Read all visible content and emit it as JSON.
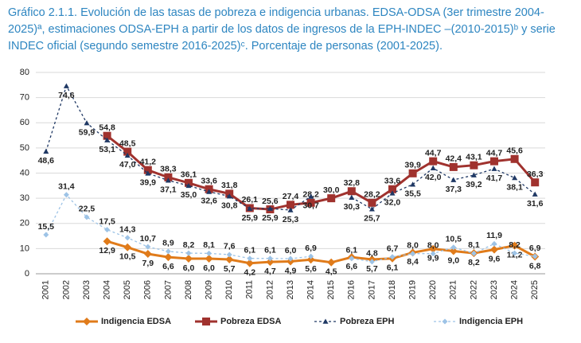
{
  "chart_data": {
    "type": "line",
    "title": "Gráfico 2.1.1. Evolución de las tasas de pobreza e indigencia urbanas. EDSA-ODSA (3er trimestre 2004-2025)ª, estimaciones ODSA-EPH a partir de los datos de ingresos de la EPH-INDEC –(2010-2015)ᵇ y serie INDEC oficial (segundo semestre 2016-2025)ᶜ. Porcentaje de personas (2001-2025).",
    "categories": [
      "2001",
      "2002",
      "2003",
      "2004",
      "2005",
      "2006",
      "2007",
      "2008",
      "2009",
      "2010",
      "2011",
      "2012",
      "2013",
      "2014",
      "2015",
      "2016",
      "2017",
      "2018",
      "2019",
      "2020",
      "2021",
      "2022",
      "2023",
      "2024",
      "2025"
    ],
    "ylim": [
      0,
      80
    ],
    "yticks": [
      0,
      10,
      20,
      30,
      40,
      50,
      60,
      70,
      80
    ],
    "grid": true,
    "legend": "bottom",
    "series": [
      {
        "name": "Indigencia EDSA",
        "color": "#e07b1a",
        "marker": "diamond",
        "dashed": false,
        "values": [
          null,
          null,
          null,
          12.9,
          10.5,
          7.9,
          6.6,
          6.0,
          6.0,
          5.7,
          4.2,
          4.7,
          4.9,
          5.6,
          4.5,
          6.6,
          5.7,
          6.1,
          8.4,
          9.9,
          9.0,
          8.2,
          9.6,
          11.2,
          6.8
        ],
        "value_labels": [
          null,
          null,
          null,
          "12,9",
          "10,5",
          "7,9",
          "6,6",
          "6,0",
          "6,0",
          "5,7",
          "4,2",
          "4,7",
          "4,9",
          "5,6",
          "4,5",
          "6,6",
          "5,7",
          "6,1",
          "8,4",
          "9,9",
          "9,0",
          "8,2",
          "9,6",
          "11,2",
          "6,8"
        ]
      },
      {
        "name": "Pobreza EDSA",
        "color": "#a0322e",
        "marker": "square",
        "dashed": false,
        "values": [
          null,
          null,
          null,
          54.8,
          48.5,
          41.2,
          38.3,
          36.1,
          33.6,
          31.8,
          26.1,
          25.6,
          27.4,
          28.2,
          30.0,
          32.8,
          28.2,
          33.6,
          39.9,
          44.7,
          42.4,
          43.1,
          44.7,
          45.6,
          36.3
        ],
        "value_labels": [
          null,
          null,
          null,
          "54,8",
          "48,5",
          "41,2",
          "38,3",
          "36,1",
          "33,6",
          "31,8",
          "26,1",
          "25,6",
          "27,4",
          "28,2",
          "30,0",
          "32,8",
          "28,2",
          "33,6",
          "39,9",
          "44,7",
          "42,4",
          "43,1",
          "44,7",
          "45,6",
          "36,3"
        ]
      },
      {
        "name": "Pobreza EPH",
        "color": "#1f3864",
        "marker": "triangle",
        "dashed": true,
        "values": [
          48.6,
          74.6,
          59.9,
          53.1,
          47.0,
          39.9,
          37.1,
          35.0,
          32.6,
          30.8,
          25.9,
          25.9,
          25.3,
          30.7,
          null,
          30.3,
          25.7,
          32.0,
          35.5,
          42.0,
          37.3,
          39.2,
          41.7,
          38.1,
          31.6
        ],
        "value_labels": [
          "48,6",
          "74,6",
          "59,9",
          "53,1",
          "47,0",
          "39,9",
          "37,1",
          "35,0",
          "32,6",
          "30,8",
          "25,9",
          "25,9",
          "25,3",
          "30,7",
          null,
          "30,3",
          "25,7",
          "32,0",
          "35,5",
          "42,0",
          "37,3",
          "39,2",
          "41,7",
          "38,1",
          "31,6"
        ]
      },
      {
        "name": "Indigencia EPH",
        "color": "#9dc3e6",
        "marker": "diamond",
        "dashed": true,
        "values": [
          15.5,
          31.4,
          22.5,
          17.5,
          14.3,
          10.7,
          8.9,
          8.2,
          8.1,
          7.6,
          6.1,
          6.1,
          6.0,
          6.9,
          null,
          6.1,
          4.8,
          6.7,
          8.0,
          8.0,
          10.5,
          8.1,
          11.9,
          8.2,
          6.9
        ],
        "value_labels": [
          "15,5",
          "31,4",
          "22,5",
          "17,5",
          "14,3",
          "10,7",
          "8,9",
          "8,2",
          "8,1",
          "7,6",
          "6,1",
          "6,1",
          "6,0",
          "6,9",
          null,
          "6,1",
          "4,8",
          "6,7",
          "8,0",
          "8,0",
          "10,5",
          "8,1",
          "11,9",
          "8,2",
          "6,9"
        ]
      }
    ]
  }
}
